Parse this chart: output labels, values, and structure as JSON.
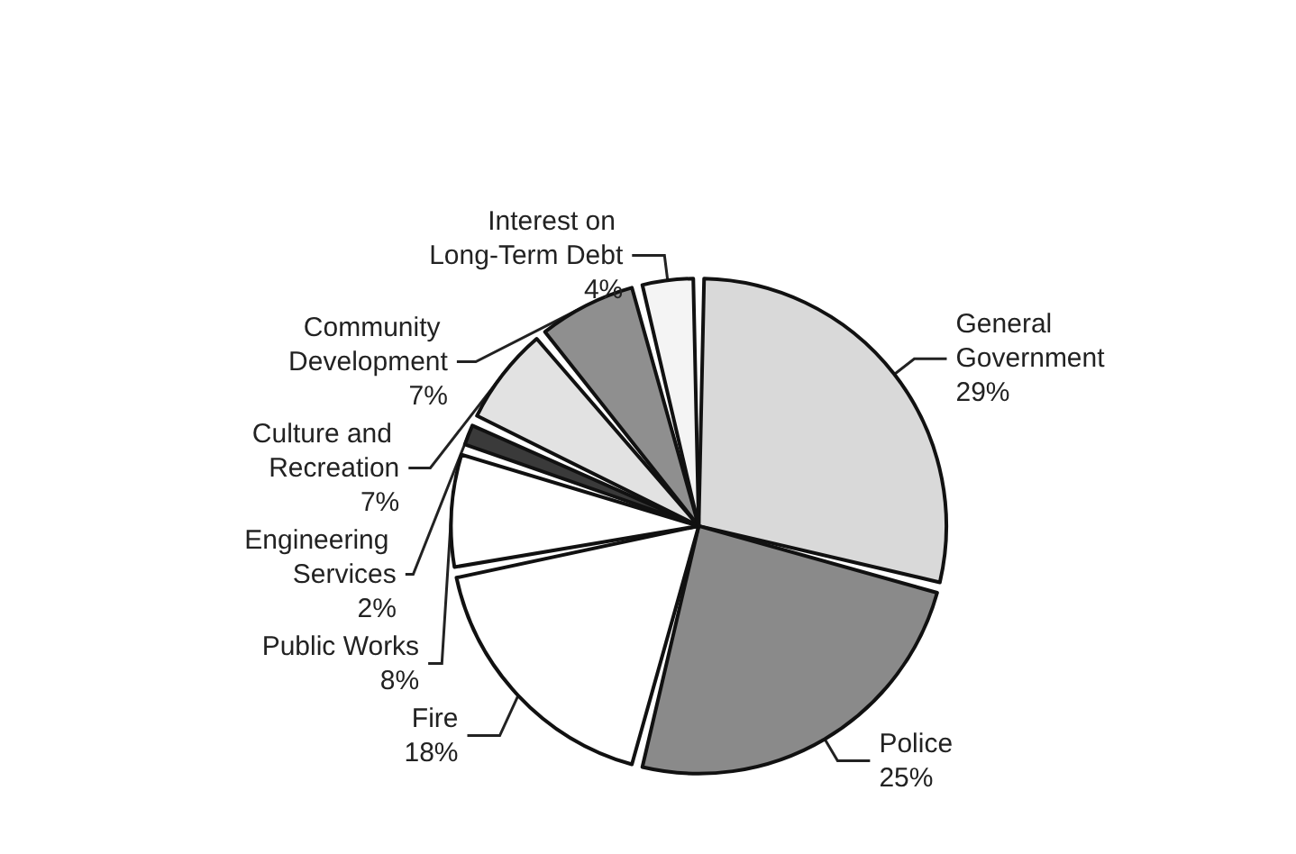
{
  "chart_data": {
    "type": "pie",
    "categories": [
      "General Government",
      "Police",
      "Fire",
      "Public Works",
      "Engineering Services",
      "Culture and Recreation",
      "Community Development",
      "Interest on Long-Term Debt"
    ],
    "values": [
      29,
      25,
      18,
      8,
      2,
      7,
      7,
      4
    ],
    "colors": [
      "#d9d9d9",
      "#8a8a8a",
      "#ffffff",
      "#ffffff",
      "#3a3a3a",
      "#e2e2e2",
      "#8f8f8f",
      "#f4f4f4"
    ],
    "value_labels": [
      "29%",
      "25%",
      "18%",
      "8%",
      "2%",
      "7%",
      "7%",
      "4%"
    ],
    "legend": false
  }
}
